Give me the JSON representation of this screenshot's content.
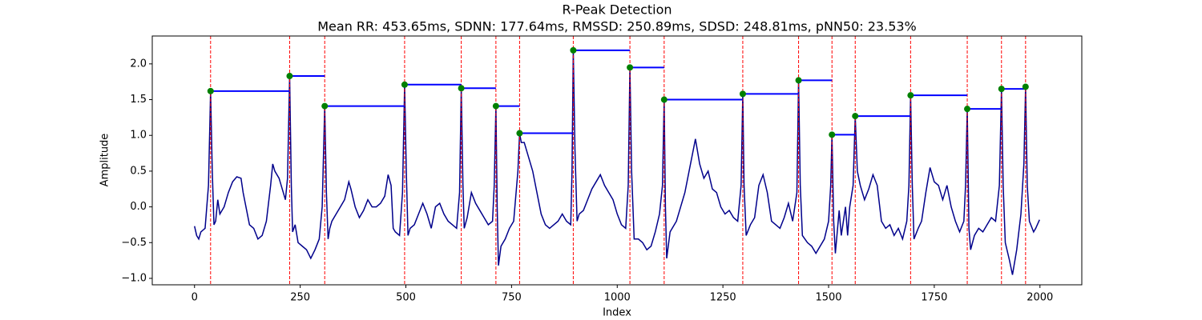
{
  "chart_data": {
    "type": "line",
    "title": "R-Peak Detection",
    "subtitle": "Mean RR: 453.65ms, SDNN: 177.64ms, RMSSD: 250.89ms, SDSD: 248.81ms, pNN50: 23.53%",
    "x_label": "Index",
    "y_label": "Amplitude",
    "xlim": [
      -100,
      2099
    ],
    "ylim": [
      -1.09,
      2.39
    ],
    "xticks": [
      0,
      250,
      500,
      750,
      1000,
      1250,
      1500,
      1750,
      2000
    ],
    "yticks": [
      {
        "value": -1.0,
        "label": "−1.0"
      },
      {
        "value": -0.5,
        "label": "−0.5"
      },
      {
        "value": 0.0,
        "label": "0.0"
      },
      {
        "value": 0.5,
        "label": "0.5"
      },
      {
        "value": 1.0,
        "label": "1.0"
      },
      {
        "value": 1.5,
        "label": "1.5"
      },
      {
        "value": 2.0,
        "label": "2.0"
      }
    ],
    "x": [
      0,
      5,
      10,
      15,
      25,
      33,
      38,
      42,
      46,
      50,
      55,
      60,
      70,
      80,
      90,
      100,
      110,
      115,
      120,
      130,
      140,
      150,
      160,
      170,
      180,
      185,
      190,
      200,
      210,
      215,
      220,
      225,
      229,
      232,
      238,
      245,
      255,
      265,
      275,
      285,
      295,
      302,
      308,
      312,
      316,
      320,
      325,
      335,
      345,
      355,
      365,
      370,
      380,
      390,
      400,
      410,
      420,
      430,
      440,
      450,
      458,
      465,
      470,
      475,
      485,
      492,
      497,
      501,
      505,
      510,
      520,
      530,
      540,
      550,
      560,
      570,
      580,
      590,
      600,
      610,
      620,
      627,
      631,
      635,
      638,
      645,
      655,
      665,
      675,
      685,
      695,
      705,
      709,
      713,
      716,
      719,
      725,
      735,
      745,
      755,
      765,
      769,
      773,
      780,
      790,
      800,
      810,
      820,
      830,
      840,
      850,
      860,
      870,
      880,
      890,
      893,
      896,
      900,
      905,
      910,
      920,
      930,
      940,
      950,
      960,
      970,
      980,
      990,
      1000,
      1010,
      1020,
      1026,
      1030,
      1034,
      1040,
      1050,
      1060,
      1070,
      1080,
      1090,
      1100,
      1107,
      1111,
      1114,
      1117,
      1125,
      1140,
      1150,
      1160,
      1170,
      1180,
      1185,
      1195,
      1205,
      1215,
      1225,
      1235,
      1245,
      1255,
      1265,
      1275,
      1285,
      1293,
      1297,
      1300,
      1305,
      1315,
      1325,
      1335,
      1345,
      1355,
      1365,
      1375,
      1385,
      1395,
      1405,
      1415,
      1425,
      1429,
      1433,
      1438,
      1450,
      1460,
      1470,
      1480,
      1490,
      1500,
      1505,
      1508,
      1512,
      1516,
      1525,
      1530,
      1540,
      1545,
      1550,
      1558,
      1563,
      1568,
      1575,
      1585,
      1595,
      1605,
      1615,
      1625,
      1635,
      1645,
      1655,
      1665,
      1675,
      1685,
      1690,
      1694,
      1698,
      1702,
      1712,
      1720,
      1730,
      1740,
      1750,
      1760,
      1770,
      1780,
      1790,
      1800,
      1810,
      1820,
      1824,
      1828,
      1832,
      1836,
      1845,
      1855,
      1865,
      1875,
      1885,
      1895,
      1904,
      1909,
      1913,
      1918,
      1928,
      1935,
      1945,
      1955,
      1962,
      1966,
      1970,
      1975,
      1985,
      1990,
      1999
    ],
    "series": [
      {
        "color": "#00008b",
        "values": [
          -0.27,
          -0.4,
          -0.45,
          -0.35,
          -0.3,
          0.3,
          1.62,
          0.5,
          -0.25,
          -0.2,
          0.1,
          -0.1,
          0.0,
          0.2,
          0.35,
          0.42,
          0.4,
          0.2,
          0.05,
          -0.25,
          -0.3,
          -0.45,
          -0.4,
          -0.2,
          0.3,
          0.6,
          0.5,
          0.4,
          0.2,
          0.1,
          0.4,
          1.83,
          0.3,
          -0.35,
          -0.25,
          -0.5,
          -0.55,
          -0.6,
          -0.72,
          -0.6,
          -0.45,
          0.0,
          1.41,
          0.2,
          -0.45,
          -0.3,
          -0.2,
          -0.1,
          0.0,
          0.1,
          0.35,
          0.25,
          0.0,
          -0.15,
          -0.05,
          0.1,
          0.0,
          0.0,
          0.05,
          0.15,
          0.45,
          0.3,
          -0.3,
          -0.35,
          -0.4,
          0.2,
          1.71,
          0.5,
          -0.4,
          -0.3,
          -0.25,
          -0.1,
          0.05,
          -0.1,
          -0.3,
          0.0,
          0.05,
          -0.1,
          -0.2,
          -0.25,
          -0.3,
          0.2,
          1.66,
          0.3,
          -0.3,
          -0.15,
          0.2,
          0.05,
          -0.05,
          -0.15,
          -0.25,
          -0.2,
          0.3,
          1.41,
          0.0,
          -0.82,
          -0.55,
          -0.45,
          -0.3,
          -0.2,
          0.5,
          1.03,
          0.9,
          0.9,
          0.7,
          0.5,
          0.2,
          -0.1,
          -0.25,
          -0.3,
          -0.25,
          -0.2,
          -0.1,
          -0.2,
          -0.25,
          0.5,
          2.19,
          0.8,
          -0.2,
          -0.1,
          -0.05,
          0.1,
          0.25,
          0.35,
          0.45,
          0.3,
          0.2,
          0.1,
          -0.1,
          -0.25,
          -0.3,
          0.3,
          1.95,
          0.5,
          -0.45,
          -0.45,
          -0.5,
          -0.6,
          -0.55,
          -0.35,
          -0.1,
          0.3,
          1.5,
          0.0,
          -0.72,
          -0.35,
          -0.2,
          0.0,
          0.2,
          0.5,
          0.8,
          0.95,
          0.6,
          0.4,
          0.5,
          0.25,
          0.2,
          0.0,
          -0.1,
          -0.05,
          -0.15,
          -0.2,
          0.3,
          1.58,
          0.3,
          -0.4,
          -0.25,
          -0.15,
          0.3,
          0.45,
          0.2,
          -0.2,
          -0.25,
          -0.3,
          -0.15,
          0.05,
          -0.2,
          0.2,
          1.77,
          0.3,
          -0.4,
          -0.5,
          -0.55,
          -0.65,
          -0.55,
          -0.45,
          -0.2,
          0.3,
          1.01,
          -0.2,
          -0.65,
          -0.05,
          -0.4,
          0.0,
          -0.4,
          0.0,
          0.3,
          1.27,
          0.5,
          0.3,
          0.1,
          0.25,
          0.45,
          0.3,
          -0.2,
          -0.3,
          -0.25,
          -0.4,
          -0.3,
          -0.45,
          -0.2,
          0.3,
          1.56,
          0.3,
          -0.45,
          -0.3,
          -0.2,
          0.2,
          0.55,
          0.35,
          0.3,
          0.1,
          0.3,
          0.0,
          -0.2,
          -0.35,
          -0.2,
          0.3,
          1.37,
          -0.3,
          -0.6,
          -0.4,
          -0.3,
          -0.35,
          -0.25,
          -0.15,
          -0.2,
          0.3,
          1.65,
          0.3,
          -0.5,
          -0.75,
          -0.95,
          -0.6,
          -0.1,
          0.6,
          1.68,
          0.3,
          -0.2,
          -0.35,
          -0.3,
          -0.18
        ]
      }
    ],
    "peaks": {
      "color": "#008000",
      "x": [
        38,
        225,
        308,
        497,
        631,
        713,
        769,
        896,
        1030,
        1111,
        1297,
        1429,
        1508,
        1563,
        1694,
        1828,
        1909,
        1966
      ],
      "values": [
        1.62,
        1.83,
        1.41,
        1.71,
        1.66,
        1.41,
        1.03,
        2.19,
        1.95,
        1.5,
        1.58,
        1.77,
        1.01,
        1.27,
        1.56,
        1.37,
        1.65,
        1.68
      ]
    },
    "rr_line_color": "#0000ff",
    "peak_line_color": "#ff0000"
  }
}
